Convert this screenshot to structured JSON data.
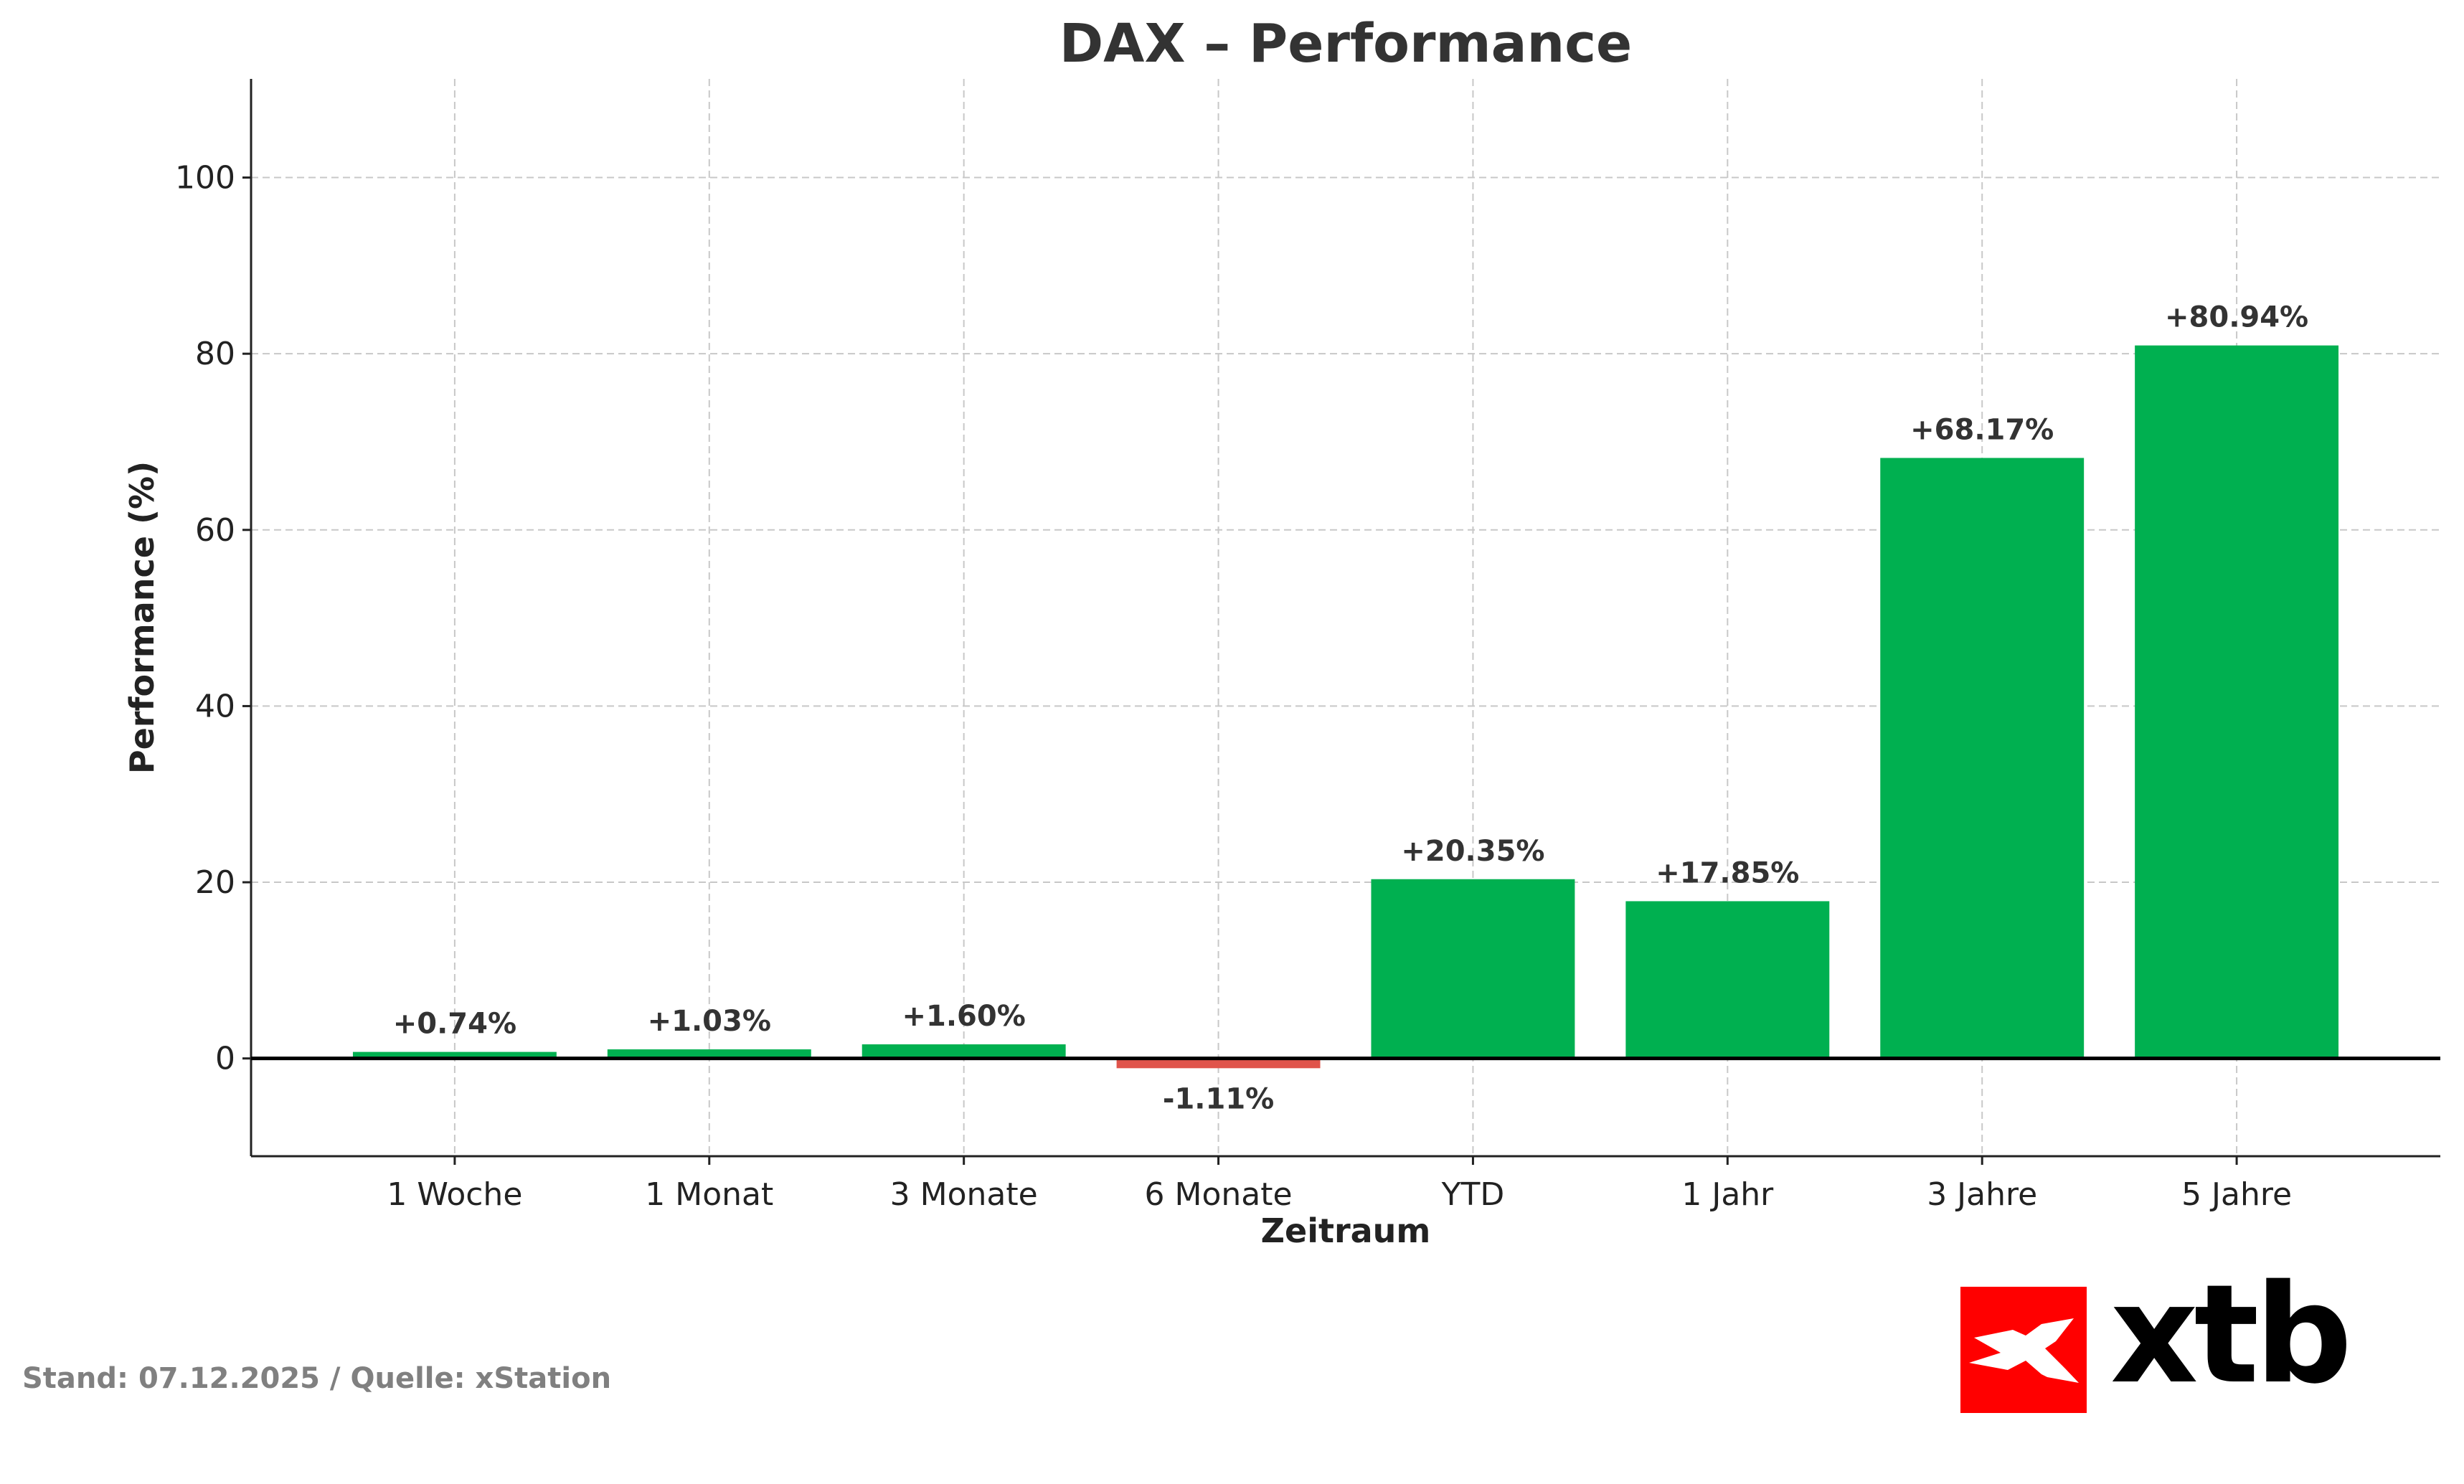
{
  "chart_data": {
    "type": "bar",
    "title": "DAX – Performance",
    "xlabel": "Zeitraum",
    "ylabel": "Performance (%)",
    "categories": [
      "1 Woche",
      "1 Monat",
      "3 Monate",
      "6 Monate",
      "YTD",
      "1 Jahr",
      "3 Jahre",
      "5 Jahre"
    ],
    "values": [
      0.74,
      1.03,
      1.6,
      -1.11,
      20.35,
      17.85,
      68.17,
      80.94
    ],
    "data_labels": [
      "+0.74%",
      "+1.03%",
      "+1.60%",
      "-1.11%",
      "+20.35%",
      "+17.85%",
      "+68.17%",
      "+80.94%"
    ],
    "ylim": [
      -11.1,
      111.2
    ],
    "yticks": [
      0,
      20,
      40,
      60,
      80,
      100
    ],
    "grid": true,
    "colors": {
      "positive": "#00B050",
      "negative": "#E0544B",
      "zero_line": "#000000"
    }
  },
  "footer": "Stand: 07.12.2025 / Quelle: xStation",
  "logo": {
    "text": "xtb",
    "color": "#FF0000"
  }
}
